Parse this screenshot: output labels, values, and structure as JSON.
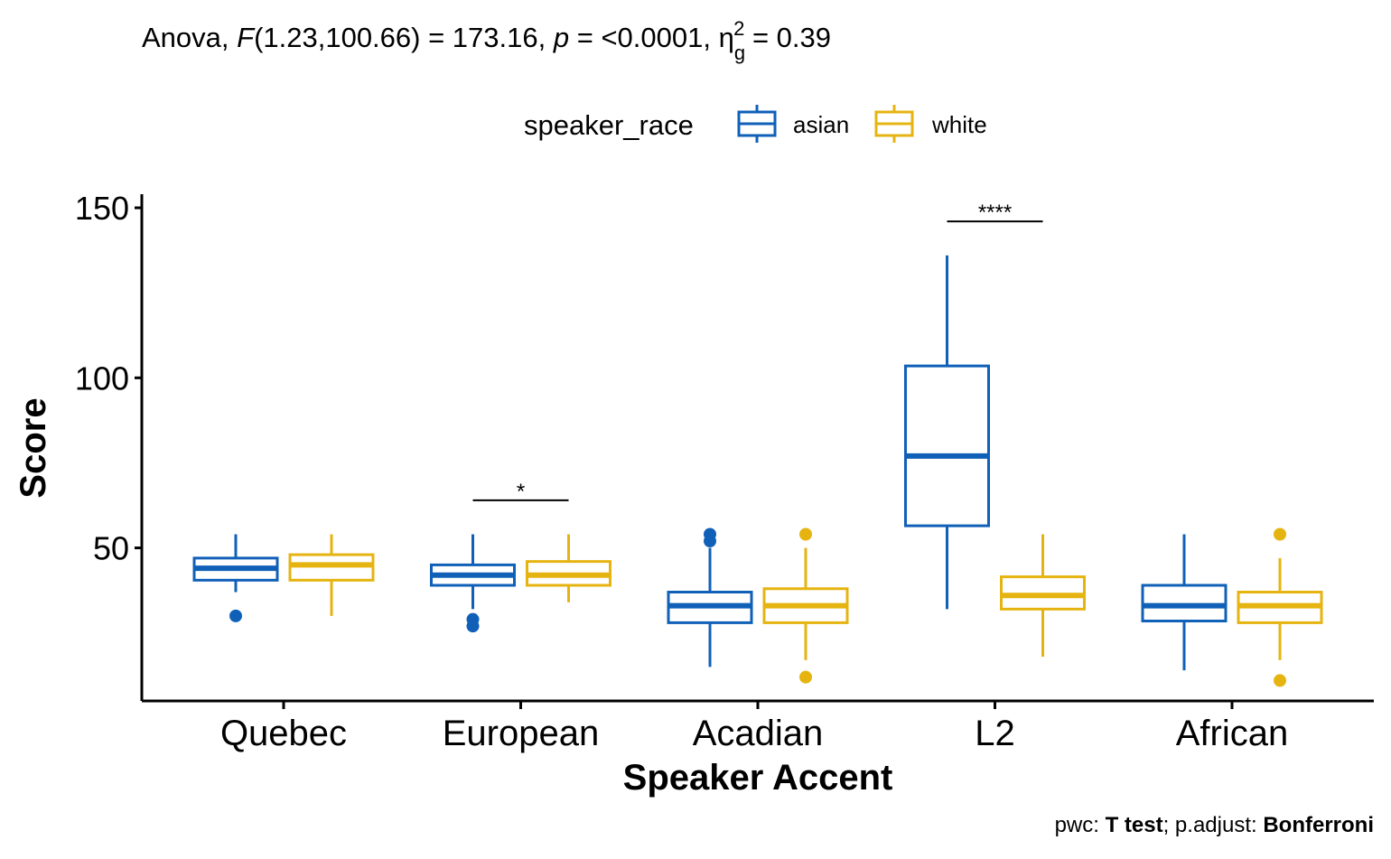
{
  "colors": {
    "asian": "#1060b8",
    "white": "#e6b410",
    "axis": "#000000"
  },
  "title": {
    "prefix": "Anova, ",
    "f_symbol": "F",
    "f_value": "(1.23,100.66) = 173.16, ",
    "p_symbol": "p",
    "p_value": " = <0.0001, ",
    "eta": "η",
    "eta_sub": "g",
    "eta_sup": "2",
    "eta_value": " = 0.39"
  },
  "caption": {
    "pwc_label": "pwc: ",
    "test": "T test",
    "sep": "; p.adjust: ",
    "adjust": "Bonferroni"
  },
  "chart_data": {
    "type": "boxplot",
    "title": "Anova, F(1.23,100.66) = 173.16, p = <0.0001, ηg2 = 0.39",
    "xlabel": "Speaker Accent",
    "ylabel": "Score",
    "ylim": [
      5,
      154
    ],
    "yticks": [
      50,
      100,
      150
    ],
    "grid": false,
    "legend": {
      "title": "speaker_race",
      "position": "top",
      "entries": [
        "asian",
        "white"
      ]
    },
    "categories": [
      "Quebec",
      "European",
      "Acadian",
      "L2",
      "African"
    ],
    "series": [
      {
        "name": "asian",
        "color": "#1060b8",
        "boxes": [
          {
            "whisker_low": 37,
            "q1": 40.5,
            "median": 44,
            "q3": 47,
            "whisker_high": 54,
            "outliers": [
              30
            ]
          },
          {
            "whisker_low": 32,
            "q1": 39,
            "median": 42,
            "q3": 45,
            "whisker_high": 54,
            "outliers": [
              27,
              29
            ]
          },
          {
            "whisker_low": 15,
            "q1": 28,
            "median": 33,
            "q3": 37,
            "whisker_high": 50,
            "outliers": [
              52,
              54
            ]
          },
          {
            "whisker_low": 32,
            "q1": 56.5,
            "median": 77,
            "q3": 103.5,
            "whisker_high": 136,
            "outliers": []
          },
          {
            "whisker_low": 14,
            "q1": 28.5,
            "median": 33,
            "q3": 39,
            "whisker_high": 54,
            "outliers": []
          }
        ]
      },
      {
        "name": "white",
        "color": "#e6b410",
        "boxes": [
          {
            "whisker_low": 30,
            "q1": 40.5,
            "median": 45,
            "q3": 48,
            "whisker_high": 54,
            "outliers": []
          },
          {
            "whisker_low": 34,
            "q1": 39,
            "median": 42,
            "q3": 46,
            "whisker_high": 54,
            "outliers": []
          },
          {
            "whisker_low": 17,
            "q1": 28,
            "median": 33,
            "q3": 38,
            "whisker_high": 50,
            "outliers": [
              12,
              54
            ]
          },
          {
            "whisker_low": 18,
            "q1": 32,
            "median": 36,
            "q3": 41.5,
            "whisker_high": 54,
            "outliers": []
          },
          {
            "whisker_low": 17,
            "q1": 28,
            "median": 33,
            "q3": 37,
            "whisker_high": 47,
            "outliers": [
              11,
              54
            ]
          }
        ]
      }
    ],
    "significance": [
      {
        "category": "European",
        "y": 64,
        "label": "*"
      },
      {
        "category": "L2",
        "y": 146,
        "label": "****"
      }
    ]
  }
}
